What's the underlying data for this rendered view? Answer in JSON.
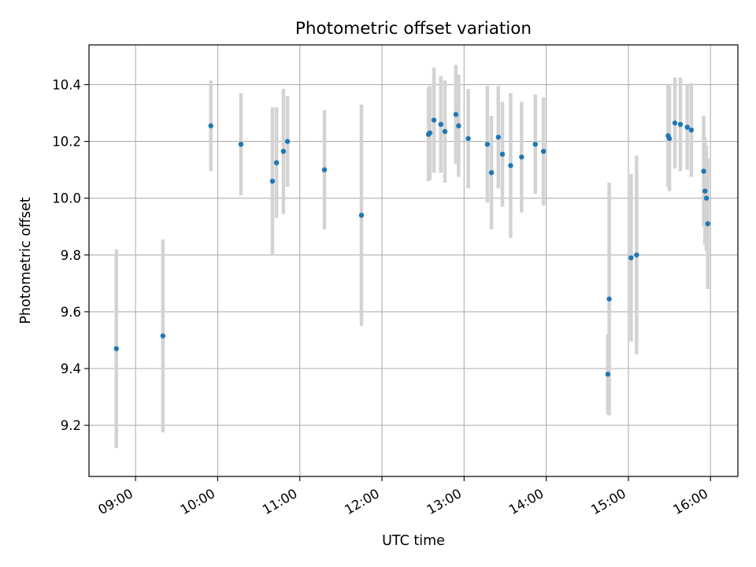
{
  "chart_data": {
    "type": "scatter",
    "title": "Photometric offset variation",
    "xlabel": "UTC time",
    "ylabel": "Photometric offset",
    "x_tick_labels": [
      "09:00",
      "10:00",
      "11:00",
      "12:00",
      "13:00",
      "14:00",
      "15:00",
      "16:00"
    ],
    "y_tick_labels": [
      "9.2",
      "9.4",
      "9.6",
      "9.8",
      "10.0",
      "10.2",
      "10.4"
    ],
    "x_ticks": [
      "09:00",
      "10:00",
      "11:00",
      "12:00",
      "13:00",
      "14:00",
      "15:00",
      "16:00"
    ],
    "y_ticks": [
      9.2,
      9.4,
      9.6,
      9.8,
      10.0,
      10.2,
      10.4
    ],
    "xlim": [
      "08:26",
      "16:20"
    ],
    "ylim": [
      9.02,
      10.54
    ],
    "grid": true,
    "colors": {
      "marker": "#1f77b4",
      "errorbar": "#d3d3d3",
      "grid": "#b0b0b0"
    },
    "points": [
      {
        "x": "08:46",
        "y": 9.47,
        "err": 0.35
      },
      {
        "x": "09:20",
        "y": 9.515,
        "err": 0.34
      },
      {
        "x": "09:55",
        "y": 10.255,
        "err": 0.16
      },
      {
        "x": "10:17",
        "y": 10.19,
        "err": 0.18
      },
      {
        "x": "10:40",
        "y": 10.06,
        "err": 0.26
      },
      {
        "x": "10:43",
        "y": 10.125,
        "err": 0.195
      },
      {
        "x": "10:48",
        "y": 10.165,
        "err": 0.22
      },
      {
        "x": "10:51",
        "y": 10.2,
        "err": 0.16
      },
      {
        "x": "11:18",
        "y": 10.1,
        "err": 0.21
      },
      {
        "x": "11:45",
        "y": 9.94,
        "err": 0.39
      },
      {
        "x": "12:34",
        "y": 10.225,
        "err": 0.165
      },
      {
        "x": "12:35",
        "y": 10.23,
        "err": 0.165
      },
      {
        "x": "12:38",
        "y": 10.275,
        "err": 0.185
      },
      {
        "x": "12:43",
        "y": 10.26,
        "err": 0.17
      },
      {
        "x": "12:46",
        "y": 10.235,
        "err": 0.18
      },
      {
        "x": "12:54",
        "y": 10.295,
        "err": 0.175
      },
      {
        "x": "12:56",
        "y": 10.255,
        "err": 0.18
      },
      {
        "x": "13:03",
        "y": 10.21,
        "err": 0.175
      },
      {
        "x": "13:17",
        "y": 10.19,
        "err": 0.205
      },
      {
        "x": "13:20",
        "y": 10.09,
        "err": 0.2
      },
      {
        "x": "13:25",
        "y": 10.215,
        "err": 0.18
      },
      {
        "x": "13:28",
        "y": 10.155,
        "err": 0.185
      },
      {
        "x": "13:34",
        "y": 10.115,
        "err": 0.255
      },
      {
        "x": "13:42",
        "y": 10.145,
        "err": 0.195
      },
      {
        "x": "13:52",
        "y": 10.19,
        "err": 0.175
      },
      {
        "x": "13:58",
        "y": 10.165,
        "err": 0.19
      },
      {
        "x": "14:45",
        "y": 9.38,
        "err": 0.14
      },
      {
        "x": "14:46",
        "y": 9.645,
        "err": 0.41
      },
      {
        "x": "15:02",
        "y": 9.79,
        "err": 0.295
      },
      {
        "x": "15:06",
        "y": 9.8,
        "err": 0.35
      },
      {
        "x": "15:29",
        "y": 10.22,
        "err": 0.18
      },
      {
        "x": "15:30",
        "y": 10.21,
        "err": 0.185
      },
      {
        "x": "15:34",
        "y": 10.265,
        "err": 0.16
      },
      {
        "x": "15:38",
        "y": 10.26,
        "err": 0.165
      },
      {
        "x": "15:43",
        "y": 10.25,
        "err": 0.15
      },
      {
        "x": "15:46",
        "y": 10.24,
        "err": 0.165
      },
      {
        "x": "15:55",
        "y": 10.095,
        "err": 0.195
      },
      {
        "x": "15:56",
        "y": 10.025,
        "err": 0.19
      },
      {
        "x": "15:57",
        "y": 10.0,
        "err": 0.185
      },
      {
        "x": "15:58",
        "y": 9.91,
        "err": 0.23
      }
    ]
  }
}
